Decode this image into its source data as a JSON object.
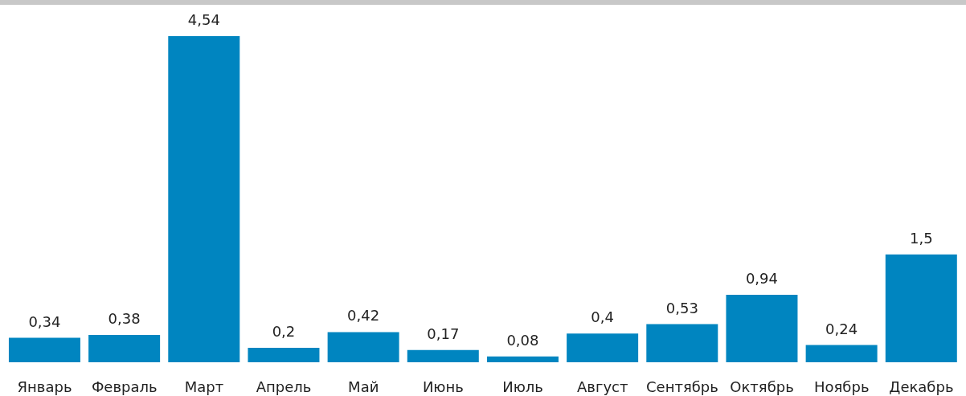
{
  "chart_data": {
    "type": "bar",
    "categories": [
      "Январь",
      "Февраль",
      "Март",
      "Апрель",
      "Май",
      "Июнь",
      "Июль",
      "Август",
      "Сентябрь",
      "Октябрь",
      "Ноябрь",
      "Декабрь"
    ],
    "values": [
      0.34,
      0.38,
      4.54,
      0.2,
      0.42,
      0.17,
      0.08,
      0.4,
      0.53,
      0.94,
      0.24,
      1.5
    ],
    "value_labels": [
      "0,34",
      "0,38",
      "4,54",
      "0,2",
      "0,42",
      "0,17",
      "0,08",
      "0,4",
      "0,53",
      "0,94",
      "0,24",
      "1,5"
    ],
    "color": "#0085c0",
    "grid": false,
    "legend": false
  }
}
